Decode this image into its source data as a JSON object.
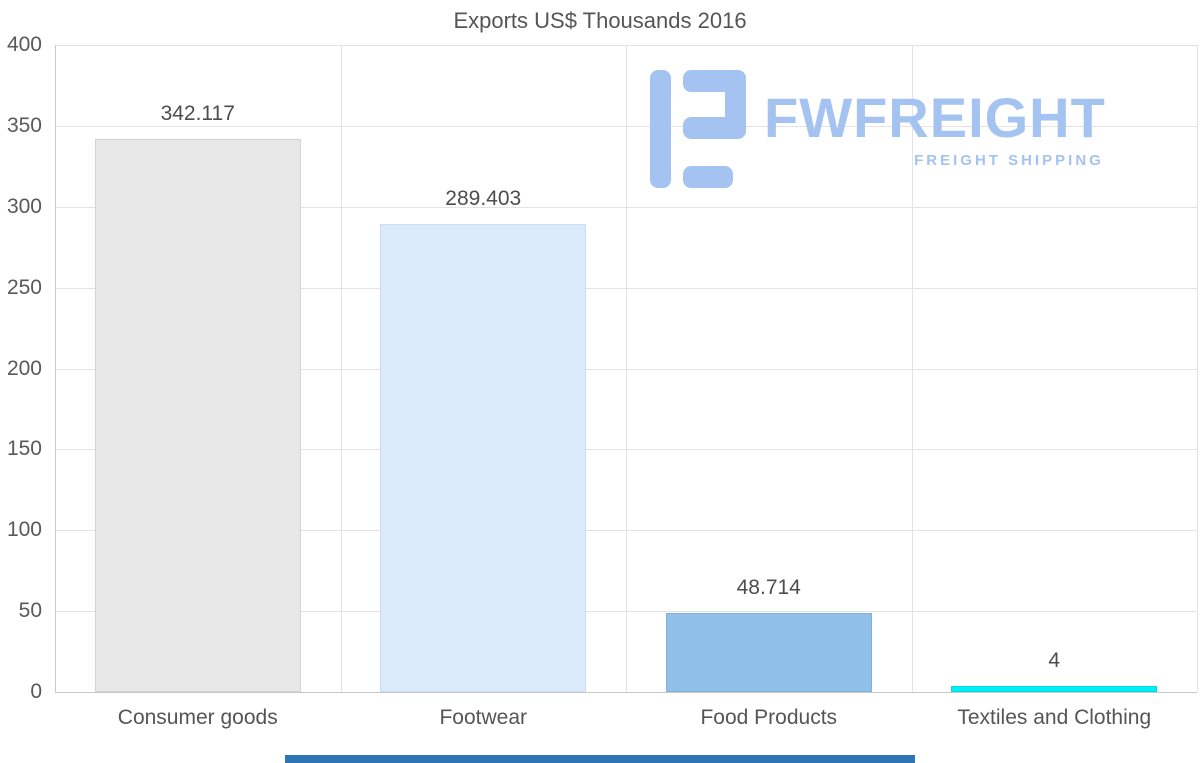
{
  "chart_data": {
    "type": "bar",
    "title": "Exports US$ Thousands 2016",
    "categories": [
      "Consumer goods",
      "Footwear",
      "Food Products",
      "Textiles and Clothing"
    ],
    "values": [
      342.117,
      289.403,
      48.714,
      4
    ],
    "value_labels": [
      "342.117",
      "289.403",
      "48.714",
      "4"
    ],
    "ylim": [
      0,
      400
    ],
    "yticks": [
      0,
      50,
      100,
      150,
      200,
      250,
      300,
      350,
      400
    ],
    "grid": true,
    "legend": "none",
    "xlabel": "",
    "ylabel": "",
    "bar_colors": [
      "#e8e8e8",
      "#daeafb",
      "#90bfe8",
      "#00eff4"
    ],
    "bar_border_colors": [
      "#d3d3d3",
      "#c8def5",
      "#7fb2df",
      "#00dbe2"
    ]
  },
  "logo": {
    "brand": "FWFREIGHT",
    "tagline": "FREIGHT SHIPPING",
    "color": "#a5c3f1"
  },
  "colors": {
    "background": "#ffffff",
    "grid_line": "#e3e3e3",
    "axis_line": "#c7c7c7",
    "axis_text": "#595959",
    "value_text": "#4d4d4d",
    "bottom_strip": "#2e75b6"
  }
}
